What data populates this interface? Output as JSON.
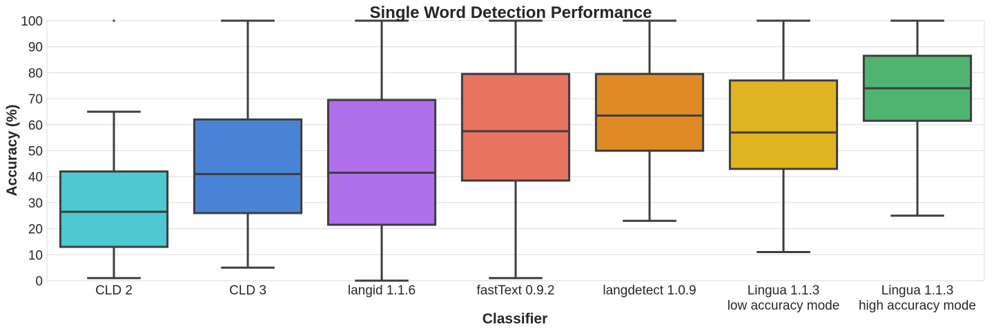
{
  "chart_data": {
    "type": "box",
    "title": "Single Word Detection Performance",
    "xlabel": "Classifier",
    "ylabel": "Accuracy (%)",
    "ylim": [
      0,
      100
    ],
    "yticks": [
      0,
      10,
      20,
      30,
      40,
      50,
      60,
      70,
      80,
      90,
      100
    ],
    "grid": "horizontal",
    "categories": [
      {
        "label": [
          "CLD 2"
        ],
        "color": "#4ec8d1",
        "whisker_low": 1,
        "q1": 13,
        "median": 26.5,
        "q3": 42,
        "whisker_high": 65,
        "outliers": [
          100
        ]
      },
      {
        "label": [
          "CLD 3"
        ],
        "color": "#4a83d6",
        "whisker_low": 5,
        "q1": 26,
        "median": 41,
        "q3": 62,
        "whisker_high": 100,
        "outliers": []
      },
      {
        "label": [
          "langid 1.1.6"
        ],
        "color": "#af70ec",
        "whisker_low": 0,
        "q1": 21.5,
        "median": 41.5,
        "q3": 69.5,
        "whisker_high": 100,
        "outliers": []
      },
      {
        "label": [
          "fastText 0.9.2"
        ],
        "color": "#e97361",
        "whisker_low": 1,
        "q1": 38.5,
        "median": 57.5,
        "q3": 79.5,
        "whisker_high": 100,
        "outliers": []
      },
      {
        "label": [
          "langdetect 1.0.9"
        ],
        "color": "#df8a24",
        "whisker_low": 23,
        "q1": 50,
        "median": 63.5,
        "q3": 79.5,
        "whisker_high": 100,
        "outliers": []
      },
      {
        "label": [
          "Lingua 1.1.3",
          "low accuracy mode"
        ],
        "color": "#e0b420",
        "whisker_low": 11,
        "q1": 43,
        "median": 57,
        "q3": 77,
        "whisker_high": 100,
        "outliers": []
      },
      {
        "label": [
          "Lingua 1.1.3",
          "high accuracy mode"
        ],
        "color": "#4fb46f",
        "whisker_low": 25,
        "q1": 61.5,
        "median": 74,
        "q3": 86.5,
        "whisker_high": 100,
        "outliers": []
      }
    ]
  }
}
